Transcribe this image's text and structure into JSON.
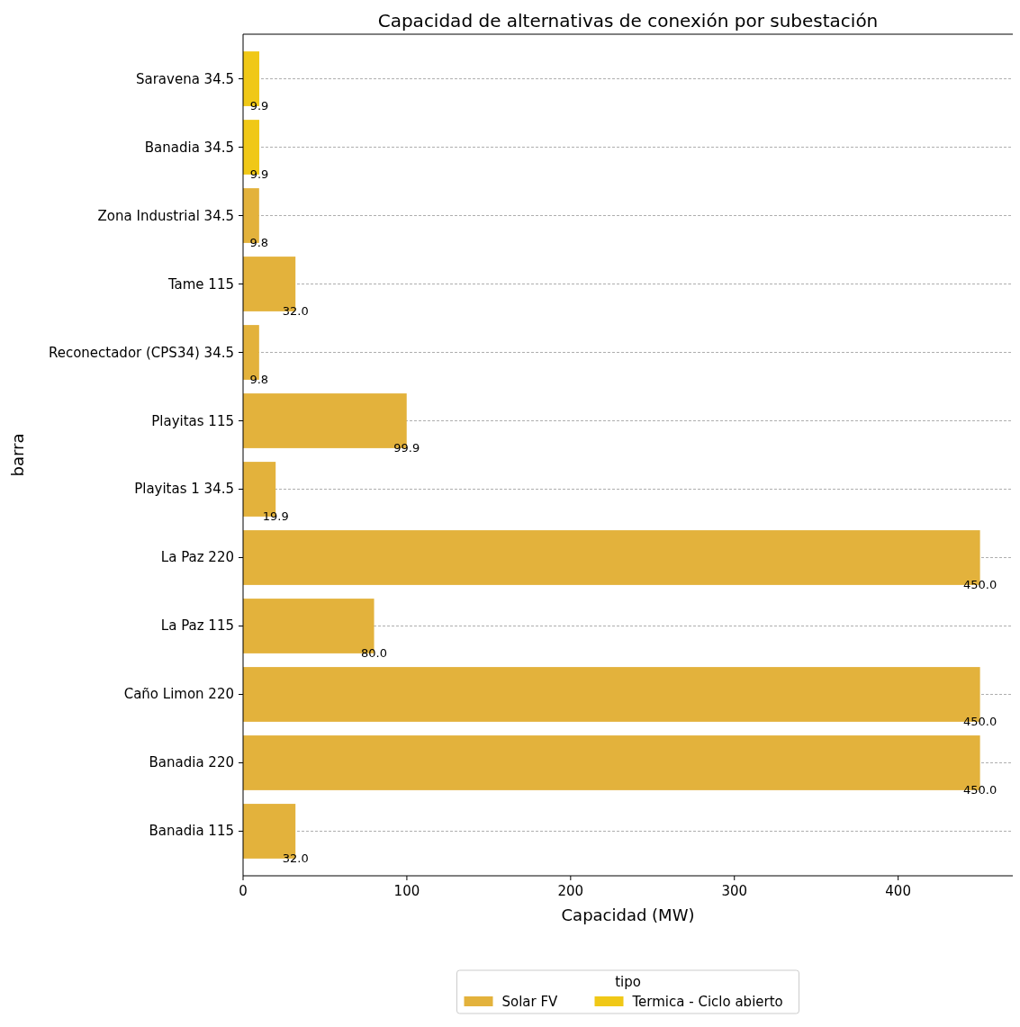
{
  "chart_data": {
    "type": "bar",
    "orientation": "horizontal",
    "title": "Capacidad de alternativas de conexión por subestación",
    "xlabel": "Capacidad (MW)",
    "ylabel": "barra",
    "legend_title": "tipo",
    "legend": "bottom",
    "grid": "y",
    "categories": [
      "Saravena 34.5",
      "Banadia 34.5",
      "Zona Industrial 34.5",
      "Tame 115",
      "Reconectador (CPS34) 34.5",
      "Playitas 115",
      "Playitas 1 34.5",
      "La Paz 220",
      "La Paz 115",
      "Caño Limon 220",
      "Banadia 220",
      "Banadia 115"
    ],
    "xlim": [
      0,
      470
    ],
    "xticks": [
      0,
      100,
      200,
      300,
      400
    ],
    "series": [
      {
        "name": "Solar FV",
        "color": "#e3b23c",
        "values": [
          null,
          null,
          9.8,
          32.0,
          9.8,
          99.9,
          19.9,
          450.0,
          80.0,
          450.0,
          450.0,
          32.0
        ],
        "value_labels": [
          null,
          null,
          "9.8",
          "32.0",
          "9.8",
          "99.9",
          "19.9",
          "450.0",
          "80.0",
          "450.0",
          "450.0",
          "32.0"
        ]
      },
      {
        "name": "Termica - Ciclo abierto",
        "color": "#f0c817",
        "values": [
          9.9,
          9.9,
          null,
          null,
          null,
          null,
          null,
          null,
          null,
          null,
          null,
          null
        ],
        "value_labels": [
          "9.9",
          "9.9",
          null,
          null,
          null,
          null,
          null,
          null,
          null,
          null,
          null,
          null
        ]
      }
    ]
  }
}
